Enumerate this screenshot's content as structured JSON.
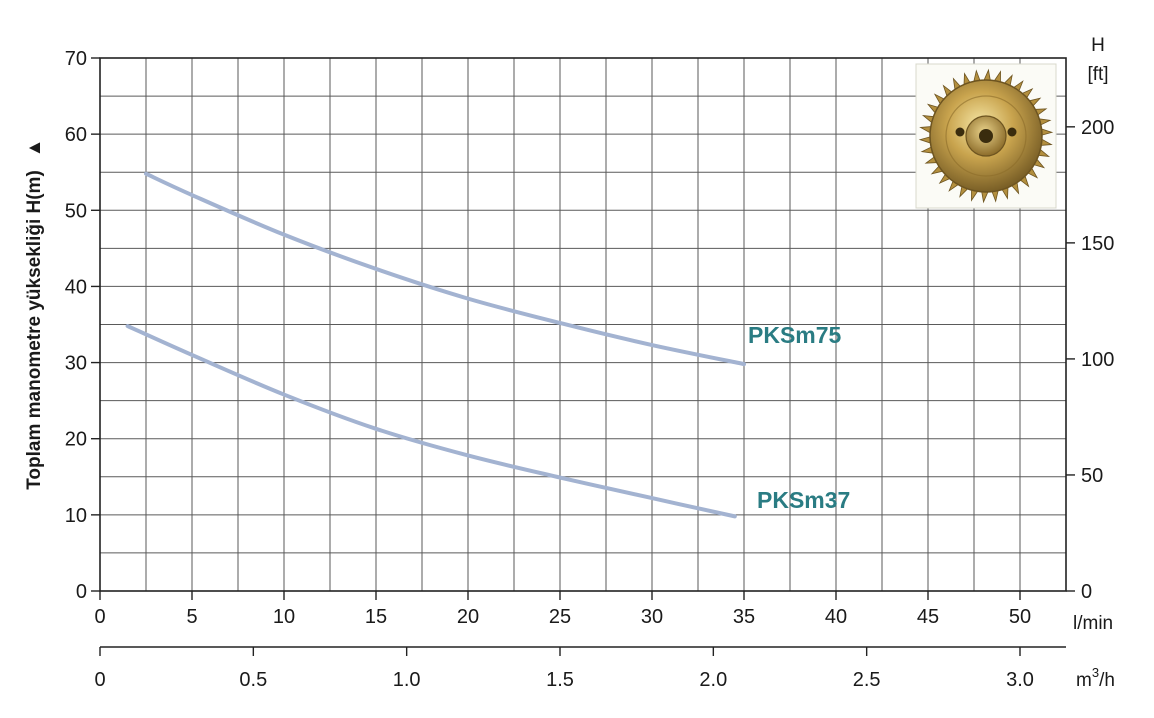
{
  "chart_data": {
    "type": "line",
    "ylabel": "Toplam manometre yüksekliği  H(m)",
    "ylabel_arrow": "▲",
    "ylim": [
      0,
      70
    ],
    "y_ticks": [
      0,
      10,
      20,
      30,
      40,
      50,
      60,
      70
    ],
    "xlim_lmin": [
      0,
      52.5
    ],
    "x_ticks_lmin": [
      0,
      5,
      10,
      15,
      20,
      25,
      30,
      35,
      40,
      45,
      50
    ],
    "x_unit_lmin": "l/min",
    "x_ticks_m3h": [
      "0",
      "0.5",
      "1.0",
      "1.5",
      "2.0",
      "2.5",
      "3.0"
    ],
    "x_ticks_m3h_values": [
      0,
      0.5,
      1.0,
      1.5,
      2.0,
      2.5,
      3.0
    ],
    "x_unit_m3h_base": "m",
    "x_unit_m3h_sup": "3",
    "x_unit_m3h_tail": "/h",
    "y2_title": "H",
    "y2_unit": "[ft]",
    "y2_ticks": [
      0,
      50,
      100,
      150,
      200
    ],
    "grid": true,
    "line_color": "#a3b3d1",
    "label_color": "#2a7c83",
    "series": [
      {
        "name": "PKSm75",
        "x": [
          2.5,
          5,
          10,
          15,
          20,
          25,
          30,
          35
        ],
        "y": [
          54.8,
          52.0,
          46.8,
          42.3,
          38.4,
          35.2,
          32.3,
          29.8
        ]
      },
      {
        "name": "PKSm37",
        "x": [
          1.5,
          5,
          10,
          15,
          20,
          25,
          30,
          34.5
        ],
        "y": [
          34.8,
          31.0,
          25.8,
          21.3,
          17.8,
          14.9,
          12.2,
          9.8
        ]
      }
    ]
  },
  "image": {
    "icon": "brass-impeller-icon"
  }
}
